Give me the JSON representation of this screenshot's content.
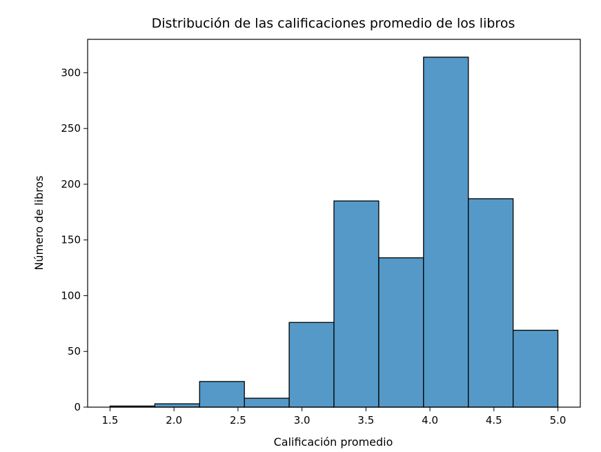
{
  "chart_data": {
    "type": "bar",
    "title": "Distribución de las calificaciones promedio de los libros",
    "xlabel": "Calificación promedio",
    "ylabel": "Número de libros",
    "bins": [
      {
        "start": 1.5,
        "end": 1.85,
        "count": 1
      },
      {
        "start": 1.85,
        "end": 2.2,
        "count": 3
      },
      {
        "start": 2.2,
        "end": 2.55,
        "count": 23
      },
      {
        "start": 2.55,
        "end": 2.9,
        "count": 8
      },
      {
        "start": 2.9,
        "end": 3.25,
        "count": 76
      },
      {
        "start": 3.25,
        "end": 3.6,
        "count": 185
      },
      {
        "start": 3.6,
        "end": 3.95,
        "count": 134
      },
      {
        "start": 3.95,
        "end": 4.3,
        "count": 314
      },
      {
        "start": 4.3,
        "end": 4.65,
        "count": 187
      },
      {
        "start": 4.65,
        "end": 5.0,
        "count": 69
      }
    ],
    "xlim": [
      1.325,
      5.175
    ],
    "ylim": [
      0,
      330
    ],
    "xticks": [
      "1.5",
      "2.0",
      "2.5",
      "3.0",
      "3.5",
      "4.0",
      "4.5",
      "5.0"
    ],
    "yticks": [
      "0",
      "50",
      "100",
      "150",
      "200",
      "250",
      "300"
    ],
    "bar_color": "#5499c7",
    "edge_color": "#000000",
    "grid": false,
    "legend": false
  }
}
